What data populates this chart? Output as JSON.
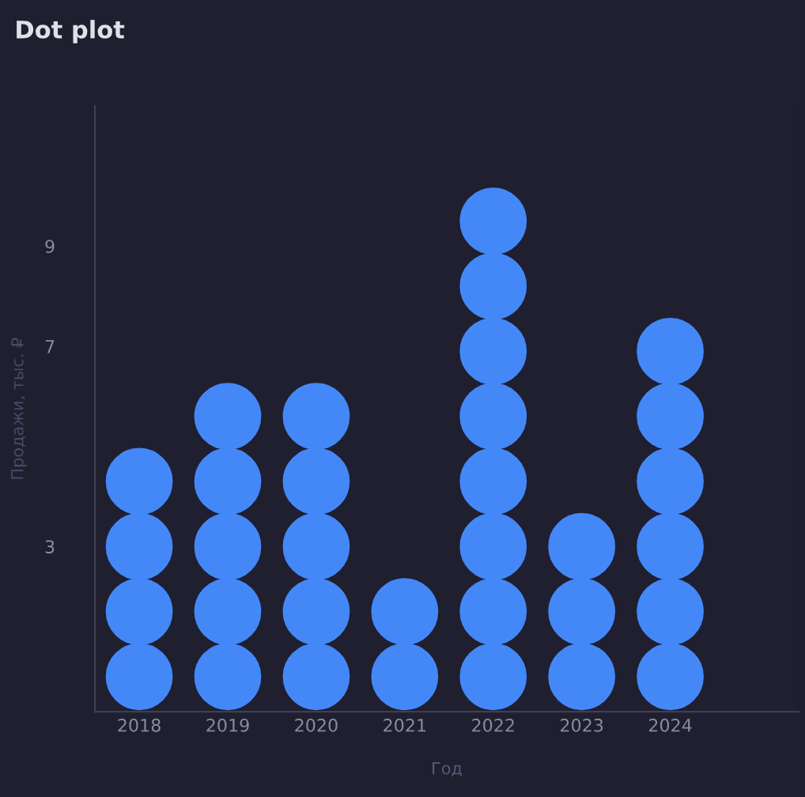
{
  "chart_data": {
    "type": "scatter",
    "title": "Dot plot",
    "xlabel": "Год",
    "ylabel": "Продажи, тыс. ₽",
    "categories": [
      "2018",
      "2019",
      "2020",
      "2021",
      "2022",
      "2023",
      "2024"
    ],
    "series": [
      {
        "color": "#4488f8",
        "values": [
          0.4,
          0.4,
          0.4,
          0.4,
          0.4,
          0.4,
          0.4
        ]
      },
      {
        "color": "#4488f8",
        "values": [
          1.7,
          1.7,
          1.7,
          1.7,
          1.7,
          1.7,
          1.7
        ]
      },
      {
        "color": "#4488f8",
        "values": [
          3.0,
          3.0,
          3.0,
          null,
          3.0,
          3.0,
          3.0
        ]
      },
      {
        "color": "#4488f8",
        "values": [
          4.3,
          4.3,
          4.3,
          null,
          4.3,
          null,
          4.3
        ]
      },
      {
        "color": "#4488f8",
        "values": [
          null,
          5.6,
          5.6,
          null,
          5.6,
          null,
          5.6
        ]
      },
      {
        "color": "#4488f8",
        "values": [
          null,
          null,
          null,
          null,
          6.9,
          null,
          6.9
        ]
      },
      {
        "color": "#4488f8",
        "values": [
          null,
          null,
          null,
          null,
          8.2,
          null,
          null
        ]
      },
      {
        "color": "#4488f8",
        "values": [
          null,
          null,
          null,
          null,
          9.5,
          null,
          null
        ]
      }
    ],
    "ylim": [
      -0.3,
      11.8
    ],
    "yticks": [
      3,
      7,
      9
    ],
    "marker": "circle",
    "grid": false,
    "legend": false
  }
}
